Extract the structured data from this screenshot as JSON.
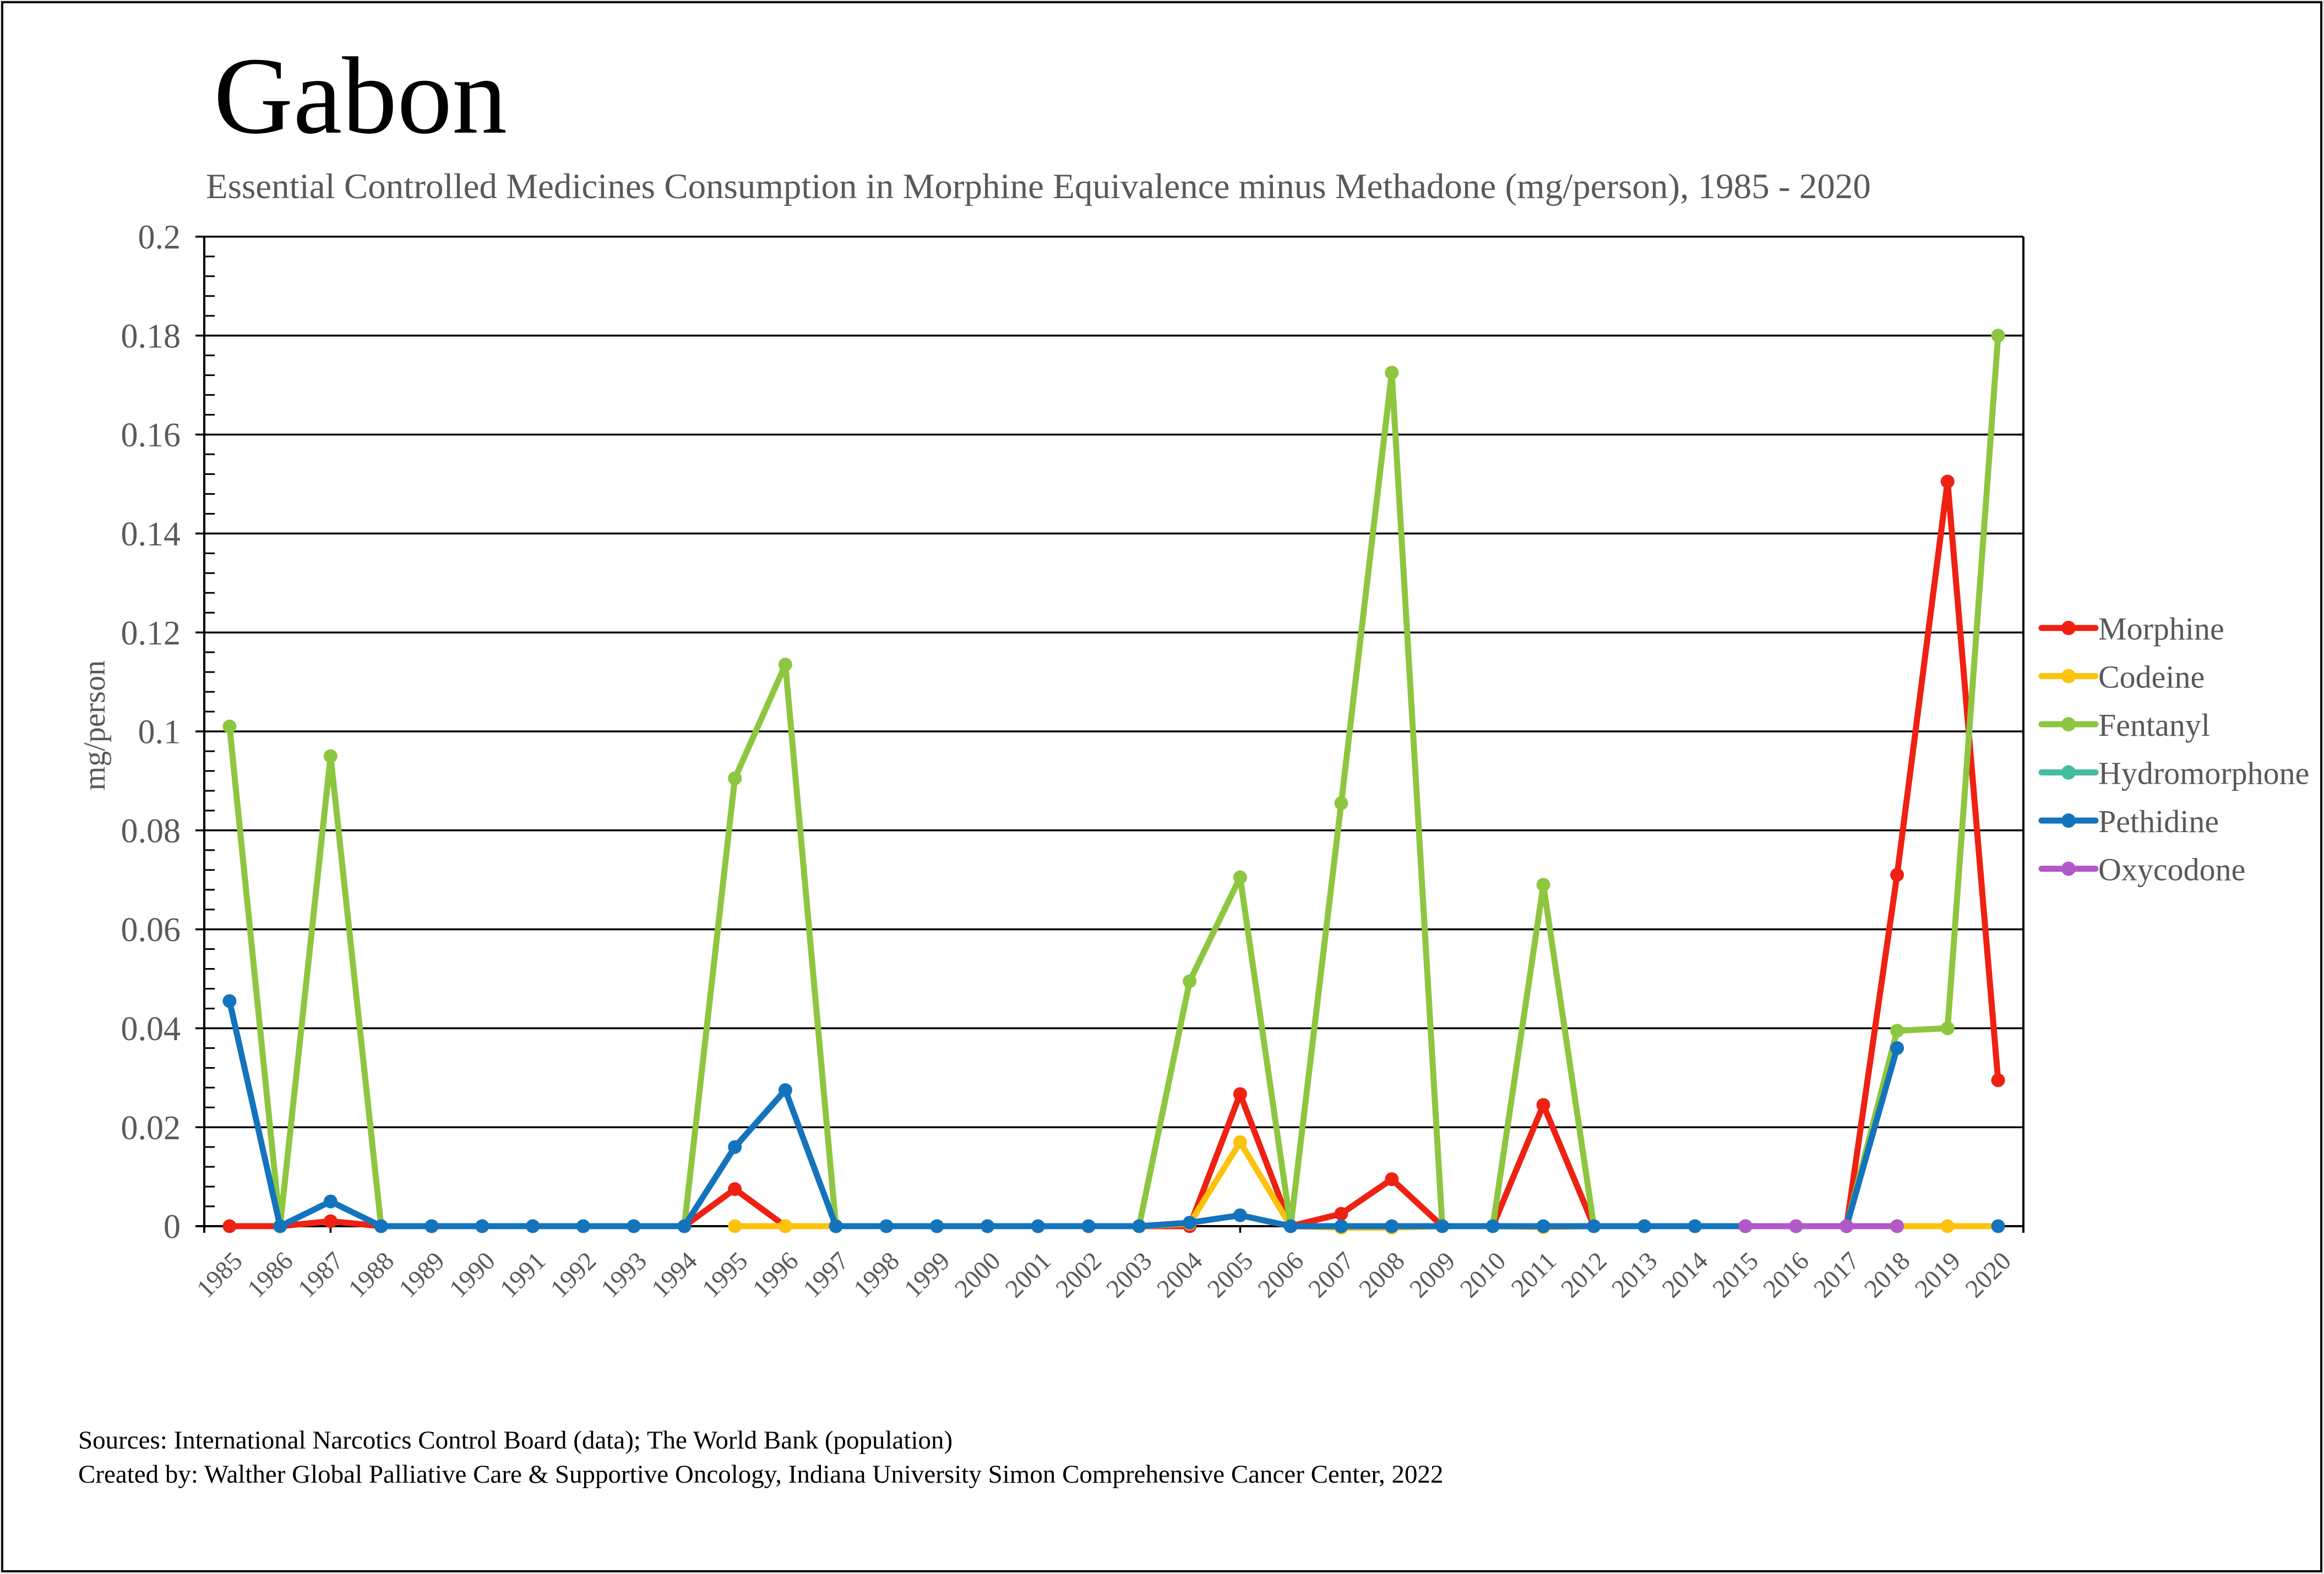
{
  "frame": {
    "background": "#ffffff",
    "border_color": "#0f0f0f",
    "outer_background": "#e9e9e9"
  },
  "header": {
    "title": "Gabon",
    "subtitle": "Essential Controlled Medicines Consumption in Morphine Equivalence minus Methadone (mg/person), 1985 - 2020"
  },
  "axes": {
    "y": {
      "title": "mg/person",
      "min": 0,
      "max": 0.2,
      "major_step": 0.02,
      "minor_step": 0.004
    },
    "x": {
      "first_year": 1985,
      "last_year": 2020
    }
  },
  "footer": {
    "sources": "Sources: International Narcotics Control Board (data); The World Bank (population)",
    "credit": "Created by: Walther Global Palliative Care & Supportive Oncology, Indiana University Simon Comprehensive Cancer Center, 2022"
  },
  "colors": {
    "text_gray": "#595959",
    "axis_black": "#000000",
    "title_black": "#000000"
  },
  "chart_data": {
    "type": "line",
    "title": "Essential Controlled Medicines Consumption in Morphine Equivalence minus Methadone (mg/person), 1985 - 2020",
    "xlabel": "",
    "ylabel": "mg/person",
    "ylim": [
      0,
      0.2
    ],
    "y_major_step": 0.02,
    "grid": "horizontal-major",
    "legend_position": "right",
    "x": [
      1985,
      1986,
      1987,
      1988,
      1989,
      1990,
      1991,
      1992,
      1993,
      1994,
      1995,
      1996,
      1997,
      1998,
      1999,
      2000,
      2001,
      2002,
      2003,
      2004,
      2005,
      2006,
      2007,
      2008,
      2009,
      2010,
      2011,
      2012,
      2013,
      2014,
      2015,
      2016,
      2017,
      2018,
      2019,
      2020
    ],
    "series": [
      {
        "name": "Morphine",
        "color": "#ee2112",
        "values": [
          0,
          0,
          0.001,
          0,
          0,
          0,
          0,
          0,
          0,
          0,
          0.0075,
          0,
          0,
          0,
          0,
          0,
          0,
          0,
          0,
          0,
          0.0267,
          0,
          0.0025,
          0.0095,
          0,
          0,
          0.0245,
          0,
          0,
          0,
          0,
          0,
          0,
          0.071,
          0.1505,
          0.0295
        ]
      },
      {
        "name": "Codeine",
        "color": "#fdc20e",
        "values": [
          null,
          null,
          null,
          null,
          null,
          null,
          null,
          null,
          null,
          null,
          0,
          0,
          0,
          0,
          0,
          0,
          0,
          0,
          0,
          0.0005,
          0.017,
          0,
          -0.0003,
          -0.0003,
          0,
          0,
          -0.0002,
          0,
          0,
          0,
          0,
          0,
          0,
          0,
          0,
          0
        ]
      },
      {
        "name": "Fentanyl",
        "color": "#8dc63f",
        "values": [
          0.101,
          0,
          0.095,
          0,
          0,
          0,
          0,
          0,
          0,
          0,
          0.0905,
          0.1135,
          0,
          0,
          0,
          0,
          0,
          0,
          0,
          0.0495,
          0.0705,
          0,
          0.0855,
          0.1725,
          0,
          0,
          0.069,
          0,
          0,
          0,
          0,
          0,
          0,
          0.0395,
          0.04,
          0.18
        ]
      },
      {
        "name": "Hydromorphone",
        "color": "#42bca2",
        "values": [
          null,
          null,
          null,
          null,
          null,
          null,
          null,
          null,
          null,
          null,
          null,
          null,
          null,
          null,
          null,
          null,
          null,
          null,
          null,
          null,
          null,
          null,
          null,
          null,
          null,
          null,
          null,
          null,
          null,
          null,
          null,
          null,
          null,
          null,
          null,
          null
        ]
      },
      {
        "name": "Pethidine",
        "color": "#1473bd",
        "values": [
          0.0455,
          0,
          0.005,
          0,
          0,
          0,
          0,
          0,
          0,
          0,
          0.016,
          0.0275,
          0,
          0,
          0,
          0,
          0,
          0,
          0,
          0.0007,
          0.0022,
          0,
          0,
          0,
          0,
          0,
          0,
          0,
          0,
          0,
          0,
          0,
          0,
          0.036,
          null,
          0
        ]
      },
      {
        "name": "Oxycodone",
        "color": "#b159c9",
        "values": [
          null,
          null,
          null,
          null,
          null,
          null,
          null,
          null,
          null,
          null,
          null,
          null,
          null,
          null,
          null,
          null,
          null,
          null,
          null,
          null,
          null,
          null,
          null,
          null,
          null,
          null,
          null,
          null,
          null,
          null,
          0,
          0,
          0,
          0,
          null,
          null
        ]
      }
    ]
  }
}
